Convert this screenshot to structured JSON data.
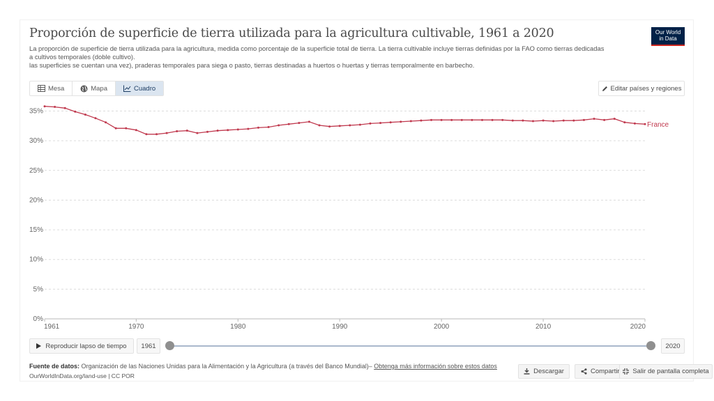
{
  "header": {
    "title": "Proporción de superficie de tierra utilizada para la agricultura cultivable, 1961 a 2020",
    "subtitle_lines": [
      "La proporción de superficie de tierra utilizada para la agricultura, medida como porcentaje de la superficie total de tierra. La tierra cultivable incluye tierras definidas por la FAO como tierras dedicadas",
      "a cultivos temporales (doble cultivo).",
      "las superficies se cuentan una vez), praderas temporales para siega o pasto, tierras destinadas a huertos o huertas y tierras temporalmente en barbecho."
    ],
    "logo_line1": "Our World",
    "logo_line2": "in Data"
  },
  "tabs": [
    {
      "label": "Mesa",
      "icon": "table-icon",
      "active": false
    },
    {
      "label": "Mapa",
      "icon": "globe-icon",
      "active": false
    },
    {
      "label": "Cuadro",
      "icon": "line-chart-icon",
      "active": true
    }
  ],
  "toolbar": {
    "edit_label": "Editar países y regiones"
  },
  "chart_data": {
    "type": "line",
    "title": "Proporción de superficie de tierra utilizada para la agricultura cultivable, 1961 a 2020",
    "xlabel": "",
    "ylabel": "",
    "xlim": [
      1961,
      2020
    ],
    "ylim": [
      0,
      36
    ],
    "y_ticks": [
      0,
      5,
      10,
      15,
      20,
      25,
      30,
      35
    ],
    "y_tick_labels": [
      "0%",
      "5%",
      "10%",
      "15%",
      "20%",
      "25%",
      "30%",
      "35%"
    ],
    "x_tick_labels": [
      "1961",
      "1970",
      "1980",
      "1990",
      "2000",
      "2010",
      "2020"
    ],
    "x_ticks": [
      1961,
      1970,
      1980,
      1990,
      2000,
      2010,
      2020
    ],
    "grid": true,
    "color": "#c0394e",
    "series": [
      {
        "name": "France",
        "x": [
          1961,
          1962,
          1963,
          1964,
          1965,
          1966,
          1967,
          1968,
          1969,
          1970,
          1971,
          1972,
          1973,
          1974,
          1975,
          1976,
          1977,
          1978,
          1979,
          1980,
          1981,
          1982,
          1983,
          1984,
          1985,
          1986,
          1987,
          1988,
          1989,
          1990,
          1991,
          1992,
          1993,
          1994,
          1995,
          1996,
          1997,
          1998,
          1999,
          2000,
          2001,
          2002,
          2003,
          2004,
          2005,
          2006,
          2007,
          2008,
          2009,
          2010,
          2011,
          2012,
          2013,
          2014,
          2015,
          2016,
          2017,
          2018,
          2019,
          2020
        ],
        "values": [
          35.8,
          35.7,
          35.5,
          34.9,
          34.4,
          33.8,
          33.1,
          32.1,
          32.1,
          31.8,
          31.1,
          31.1,
          31.3,
          31.6,
          31.7,
          31.3,
          31.5,
          31.7,
          31.8,
          31.9,
          32.0,
          32.2,
          32.3,
          32.6,
          32.8,
          33.0,
          33.2,
          32.6,
          32.4,
          32.5,
          32.6,
          32.7,
          32.9,
          33.0,
          33.1,
          33.2,
          33.3,
          33.4,
          33.5,
          33.5,
          33.5,
          33.5,
          33.5,
          33.5,
          33.5,
          33.5,
          33.4,
          33.4,
          33.3,
          33.4,
          33.3,
          33.4,
          33.4,
          33.5,
          33.7,
          33.5,
          33.7,
          33.1,
          32.9,
          32.8
        ]
      }
    ]
  },
  "controls": {
    "play_label": "Reproducir lapso de tiempo",
    "start_year": "1961",
    "end_year": "2020"
  },
  "footer": {
    "source_label": "Fuente de datos:",
    "source_text": "Organización de las Naciones Unidas para la Alimentación y la Agricultura (a través del Banco Mundial)–",
    "source_link": "Obtenga más información sobre estos datos",
    "url_text": "OurWorldInData.org/land-use | CC POR",
    "download_label": "Descargar",
    "share_label": "Compartir",
    "fullscreen_label": "Salir de pantalla completa"
  }
}
